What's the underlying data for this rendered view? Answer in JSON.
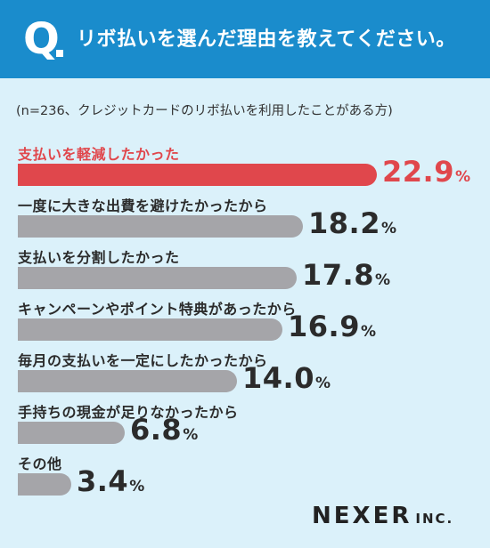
{
  "header": {
    "q_mark": "Q",
    "question": "リボ払いを選んだ理由を教えてください。"
  },
  "note": "(n=236、クレジットカードのリボ払いを利用したことがある方)",
  "logo": {
    "main": "NEXER",
    "suffix": "INC."
  },
  "colors": {
    "header": "#1a8ccc",
    "background": "#dbf1fa",
    "highlight": "#e0474c",
    "bar": "#a5a5a9"
  },
  "chart_data": {
    "type": "bar",
    "orientation": "horizontal",
    "unit": "%",
    "categories": [
      "支払いを軽減したかった",
      "一度に大きな出費を避けたかったから",
      "支払いを分割したかった",
      "キャンペーンやポイント特典があったから",
      "毎月の支払いを一定にしたかったから",
      "手持ちの現金が足りなかったから",
      "その他"
    ],
    "values": [
      22.9,
      18.2,
      17.8,
      16.9,
      14.0,
      6.8,
      3.4
    ],
    "value_labels": [
      "22.9",
      "18.2",
      "17.8",
      "16.9",
      "14.0",
      "6.8",
      "3.4"
    ],
    "highlight_index": 0
  }
}
